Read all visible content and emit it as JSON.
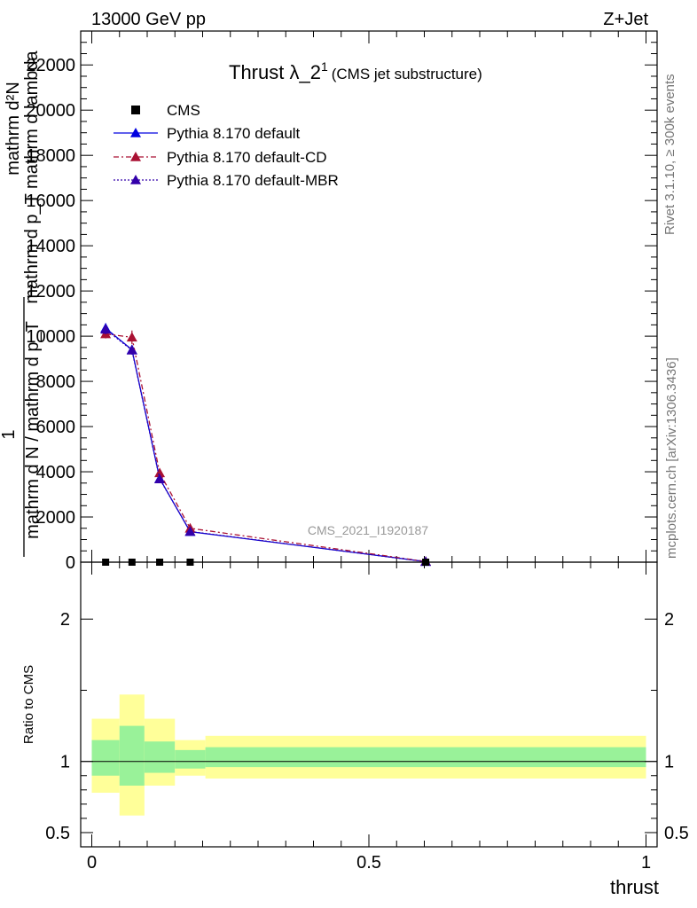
{
  "header": {
    "left": "13000 GeV pp",
    "right": "Z+Jet"
  },
  "side": {
    "rivet": "Rivet 3.1.10, ≥ 300k events",
    "mcplots": "mcplots.cern.ch [arXiv:1306.3436]"
  },
  "chart_data": {
    "type": "line",
    "title": "Thrust λ_2",
    "title_sup": "1",
    "title_sub": "(CMS jet substructure)",
    "watermark": "CMS_2021_I1920187",
    "ylabel_top": "mathrm d²N",
    "ylabel_bottom": "mathrm d p_T mathrm d lambda",
    "ylabel_left_num": "1",
    "ylabel_left_den": "mathrm d N / mathrm d p_T",
    "xlabel": "thrust",
    "xlim": [
      -0.02,
      1.02
    ],
    "ylim": [
      0,
      23500
    ],
    "yticks": [
      0,
      2000,
      4000,
      6000,
      8000,
      10000,
      12000,
      14000,
      16000,
      18000,
      20000,
      22000
    ],
    "ytick_labels": [
      "0",
      "2000",
      "4000",
      "6000",
      "8000",
      "10000",
      "12000",
      "14000",
      "16000",
      "18000",
      "20000",
      "22000"
    ],
    "xticks": [
      0,
      0.5,
      1
    ],
    "xtick_labels": [
      "0",
      "0.5",
      "1"
    ],
    "bins": [
      0,
      0.05,
      0.095,
      0.15,
      0.205,
      1.0
    ],
    "x": [
      0.025,
      0.0725,
      0.1225,
      0.1775,
      0.6025
    ],
    "series": [
      {
        "name": "CMS",
        "style": "data",
        "color": "#000000",
        "values": [
          0,
          0,
          0,
          0,
          0
        ]
      },
      {
        "name": "Pythia 8.170 default",
        "style": "solid",
        "color": "#0000e0",
        "values": [
          10350,
          9400,
          3700,
          1350,
          25
        ],
        "errors": [
          220,
          200,
          120,
          80,
          10
        ]
      },
      {
        "name": "Pythia 8.170 default-CD",
        "style": "dashed",
        "color": "#aa1133",
        "values": [
          10100,
          9950,
          3950,
          1500,
          30
        ],
        "errors": [
          200,
          300,
          130,
          90,
          10
        ]
      },
      {
        "name": "Pythia 8.170 default-MBR",
        "style": "dotted",
        "color": "#3300aa",
        "values": [
          10300,
          9380,
          3680,
          1360,
          25
        ],
        "errors": [
          220,
          200,
          120,
          80,
          10
        ]
      }
    ],
    "ratio": {
      "ylabel": "Ratio to CMS",
      "ylim": [
        0.4,
        2.4
      ],
      "yticks": [
        0.5,
        1,
        2
      ],
      "ytick_labels": [
        "0.5",
        "1",
        "2"
      ],
      "band_bins": [
        0,
        0.05,
        0.095,
        0.15,
        0.205,
        1.0
      ],
      "inner_lo": [
        0.9,
        0.83,
        0.92,
        0.95,
        0.96
      ],
      "inner_hi": [
        1.15,
        1.25,
        1.14,
        1.08,
        1.1
      ],
      "outer_lo": [
        0.78,
        0.62,
        0.83,
        0.9,
        0.88
      ],
      "outer_hi": [
        1.3,
        1.47,
        1.3,
        1.15,
        1.18
      ],
      "inner_color": "#99f299",
      "outer_color": "#ffff99"
    }
  }
}
